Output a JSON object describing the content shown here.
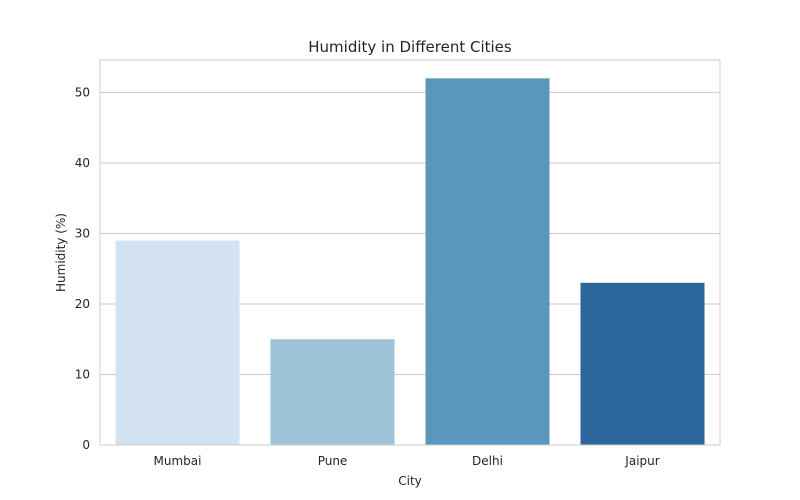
{
  "chart_data": {
    "type": "bar",
    "title": "Humidity in Different Cities",
    "xlabel": "City",
    "ylabel": "Humidity (%)",
    "categories": [
      "Mumbai",
      "Pune",
      "Delhi",
      "Jaipur"
    ],
    "values": [
      29,
      15,
      52,
      23
    ],
    "colors": [
      "#d3e2f0",
      "#9ec3d8",
      "#5b97bd",
      "#2b679b"
    ],
    "ylim": [
      0,
      54.6
    ],
    "yticks": [
      0,
      10,
      20,
      30,
      40,
      50
    ],
    "grid": true,
    "legend": "none"
  }
}
